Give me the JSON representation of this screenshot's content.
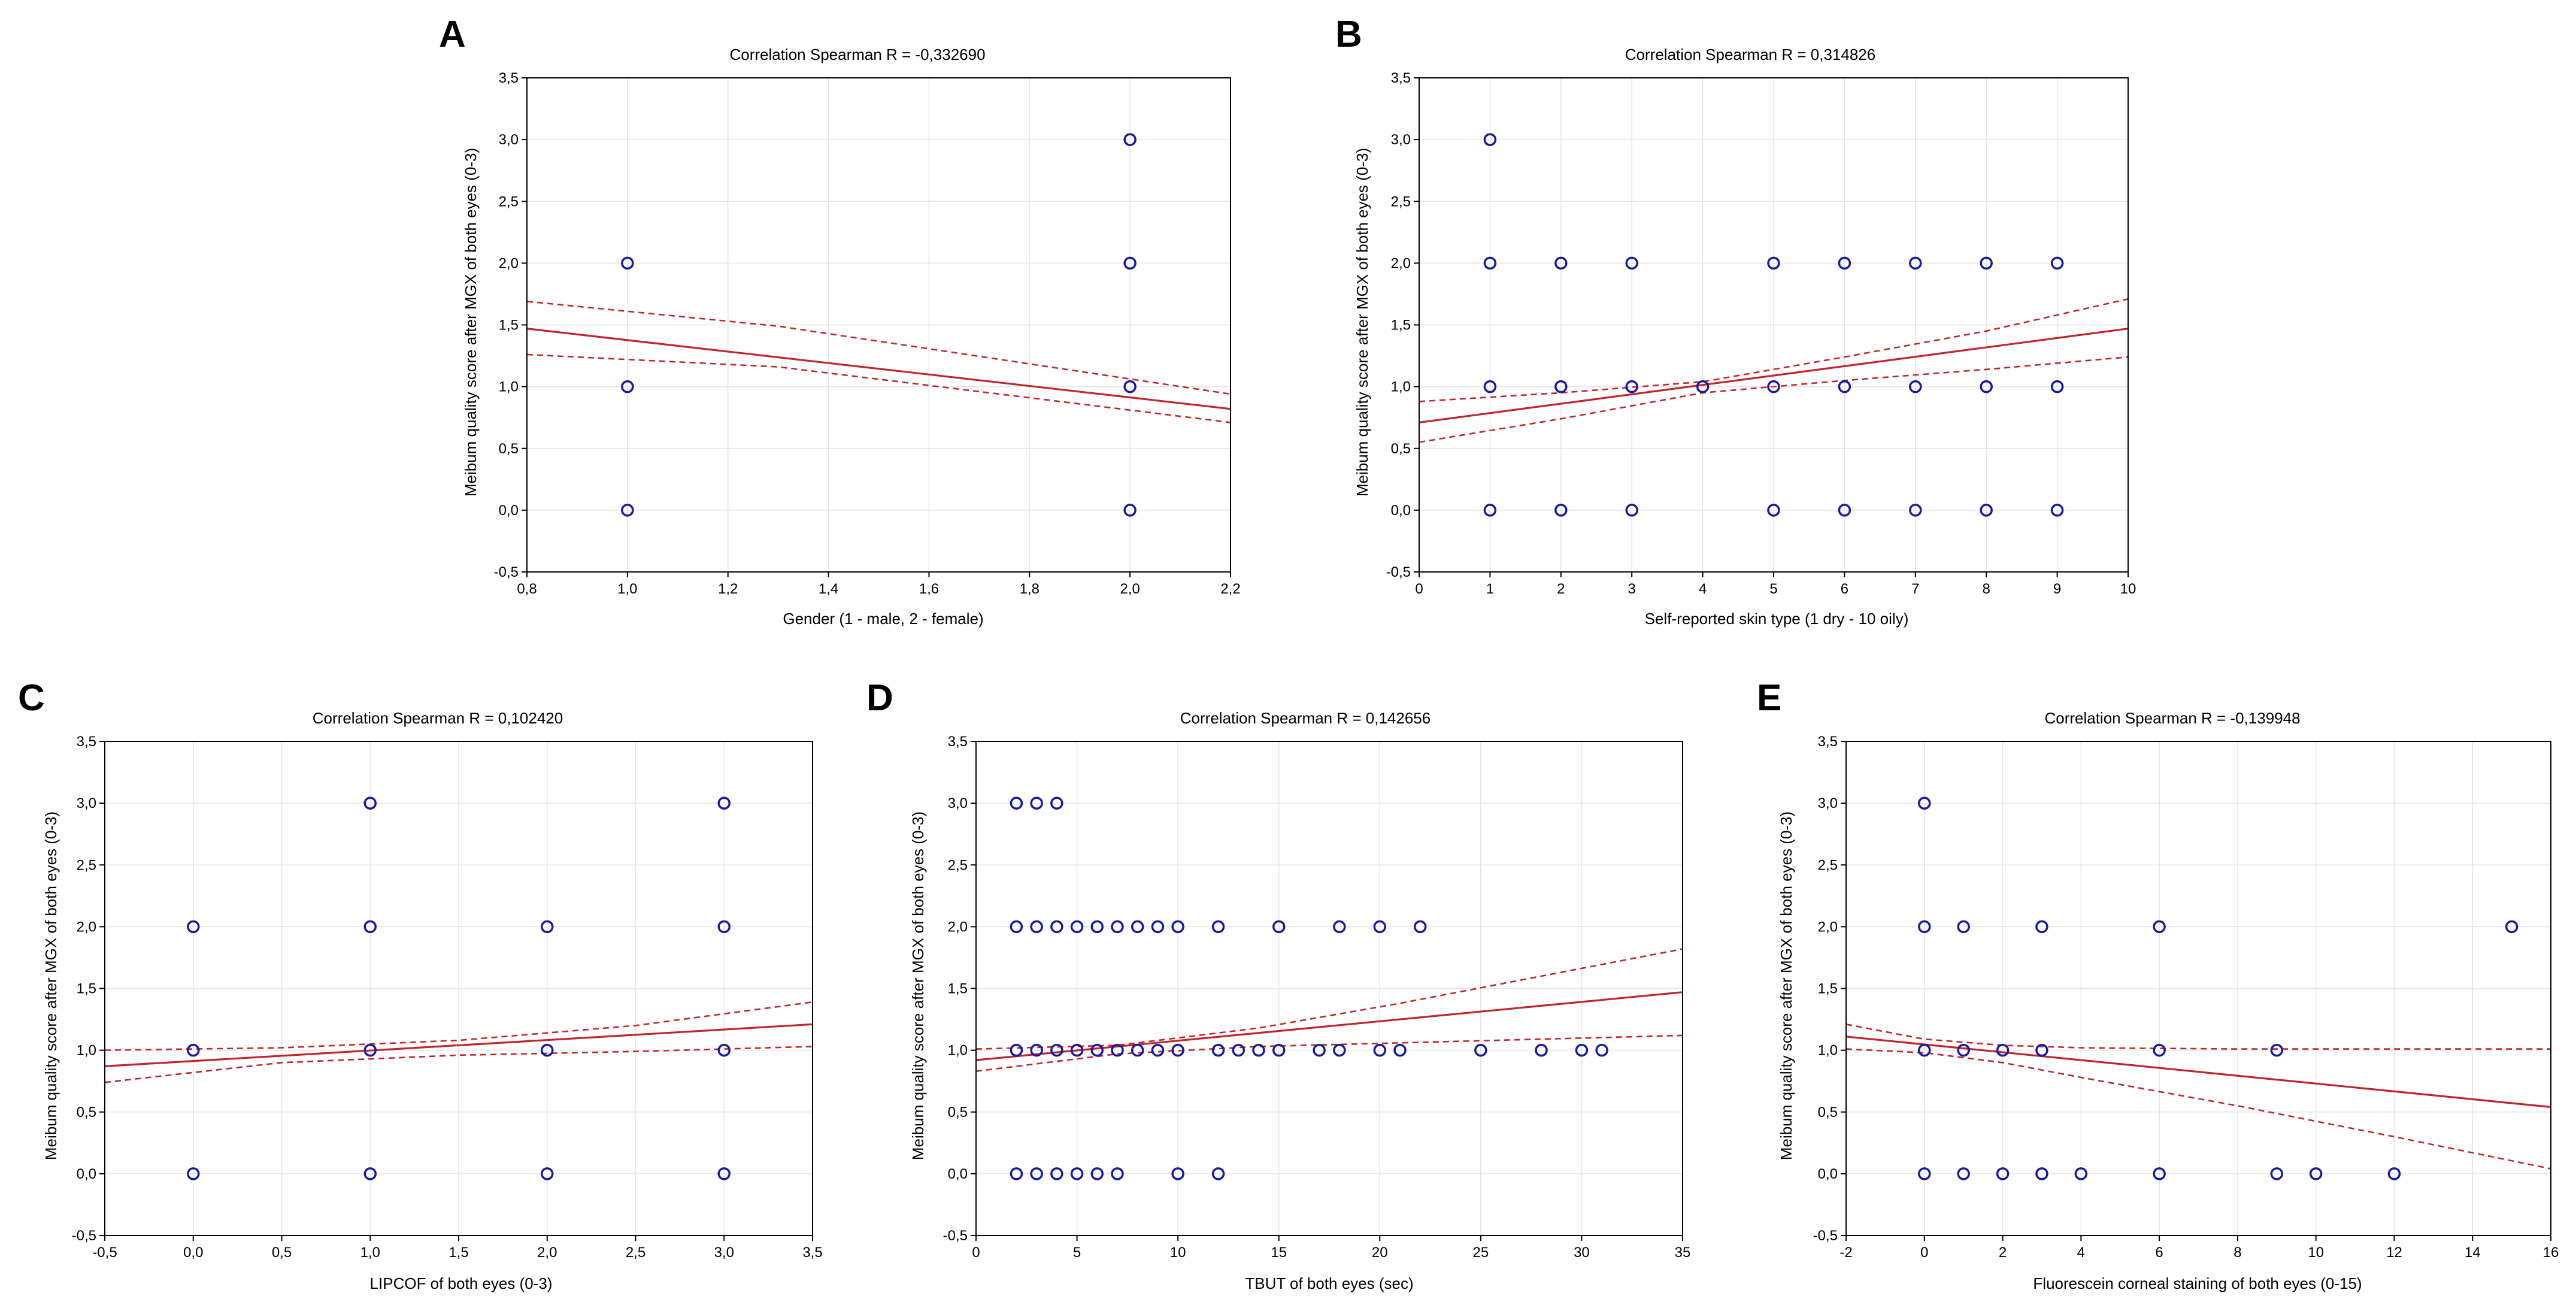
{
  "chart_data": [
    {
      "panel": "A",
      "type": "scatter",
      "title": "Correlation Spearman R = -0,332690",
      "xlabel": "Gender (1 - male, 2 - female)",
      "ylabel": "Meibum quality score after MGX of both eyes (0-3)",
      "xlim": [
        0.8,
        2.2
      ],
      "ylim": [
        -0.5,
        3.5
      ],
      "xticks": [
        "0,8",
        "1,0",
        "1,2",
        "1,4",
        "1,6",
        "1,8",
        "2,0",
        "2,2"
      ],
      "yticks": [
        "-0,5",
        "0,0",
        "0,5",
        "1,0",
        "1,5",
        "2,0",
        "2,5",
        "3,0",
        "3,5"
      ],
      "points": [
        [
          1,
          0
        ],
        [
          1,
          1
        ],
        [
          1,
          2
        ],
        [
          2,
          0
        ],
        [
          2,
          1
        ],
        [
          2,
          2
        ],
        [
          2,
          3
        ]
      ],
      "fit": [
        [
          0.8,
          1.47
        ],
        [
          2.2,
          0.82
        ]
      ],
      "ci_upper": [
        [
          0.8,
          1.69
        ],
        [
          1.3,
          1.49
        ],
        [
          2.2,
          0.94
        ]
      ],
      "ci_lower": [
        [
          0.8,
          1.26
        ],
        [
          1.3,
          1.16
        ],
        [
          2.2,
          0.71
        ]
      ]
    },
    {
      "panel": "B",
      "type": "scatter",
      "title": "Correlation Spearman R = 0,314826",
      "xlabel": "Self-reported skin type (1 dry - 10 oily)",
      "ylabel": "Meibum quality score after MGX of both eyes (0-3)",
      "xlim": [
        0,
        10
      ],
      "ylim": [
        -0.5,
        3.5
      ],
      "xticks": [
        "0",
        "1",
        "2",
        "3",
        "4",
        "5",
        "6",
        "7",
        "8",
        "9",
        "10"
      ],
      "yticks": [
        "-0,5",
        "0,0",
        "0,5",
        "1,0",
        "1,5",
        "2,0",
        "2,5",
        "3,0",
        "3,5"
      ],
      "points": [
        [
          1,
          0
        ],
        [
          1,
          1
        ],
        [
          1,
          2
        ],
        [
          1,
          3
        ],
        [
          2,
          0
        ],
        [
          2,
          1
        ],
        [
          2,
          2
        ],
        [
          3,
          0
        ],
        [
          3,
          1
        ],
        [
          3,
          2
        ],
        [
          4,
          1
        ],
        [
          5,
          0
        ],
        [
          5,
          1
        ],
        [
          5,
          2
        ],
        [
          6,
          0
        ],
        [
          6,
          1
        ],
        [
          6,
          2
        ],
        [
          7,
          0
        ],
        [
          7,
          1
        ],
        [
          7,
          2
        ],
        [
          8,
          0
        ],
        [
          8,
          1
        ],
        [
          8,
          2
        ],
        [
          9,
          0
        ],
        [
          9,
          1
        ],
        [
          9,
          2
        ]
      ],
      "fit": [
        [
          0,
          0.71
        ],
        [
          10,
          1.47
        ]
      ],
      "ci_upper": [
        [
          0,
          0.88
        ],
        [
          2,
          0.95
        ],
        [
          4,
          1.04
        ],
        [
          6,
          1.24
        ],
        [
          8,
          1.45
        ],
        [
          10,
          1.71
        ]
      ],
      "ci_lower": [
        [
          0,
          0.55
        ],
        [
          2,
          0.74
        ],
        [
          4,
          0.95
        ],
        [
          6,
          1.05
        ],
        [
          8,
          1.14
        ],
        [
          10,
          1.24
        ]
      ]
    },
    {
      "panel": "C",
      "type": "scatter",
      "title": "Correlation Spearman R = 0,102420",
      "xlabel": "LIPCOF of both eyes (0-3)",
      "ylabel": "Meibum quality score after MGX of both eyes (0-3)",
      "xlim": [
        -0.5,
        3.5
      ],
      "ylim": [
        -0.5,
        3.5
      ],
      "xticks": [
        "-0,5",
        "0,0",
        "0,5",
        "1,0",
        "1,5",
        "2,0",
        "2,5",
        "3,0",
        "3,5"
      ],
      "yticks": [
        "-0,5",
        "0,0",
        "0,5",
        "1,0",
        "1,5",
        "2,0",
        "2,5",
        "3,0",
        "3,5"
      ],
      "points": [
        [
          0,
          0
        ],
        [
          0,
          1
        ],
        [
          0,
          2
        ],
        [
          1,
          0
        ],
        [
          1,
          1
        ],
        [
          1,
          2
        ],
        [
          1,
          3
        ],
        [
          2,
          0
        ],
        [
          2,
          1
        ],
        [
          2,
          2
        ],
        [
          3,
          0
        ],
        [
          3,
          1
        ],
        [
          3,
          2
        ],
        [
          3,
          3
        ]
      ],
      "fit": [
        [
          -0.5,
          0.87
        ],
        [
          3.5,
          1.21
        ]
      ],
      "ci_upper": [
        [
          -0.5,
          1.0
        ],
        [
          0.5,
          1.02
        ],
        [
          1.5,
          1.08
        ],
        [
          2.5,
          1.2
        ],
        [
          3.5,
          1.39
        ]
      ],
      "ci_lower": [
        [
          -0.5,
          0.74
        ],
        [
          0.5,
          0.9
        ],
        [
          1.5,
          0.96
        ],
        [
          2.5,
          0.99
        ],
        [
          3.5,
          1.03
        ]
      ]
    },
    {
      "panel": "D",
      "type": "scatter",
      "title": "Correlation Spearman R = 0,142656",
      "xlabel": "TBUT of both eyes (sec)",
      "ylabel": "Meibum quality score after MGX of both eyes (0-3)",
      "xlim": [
        0,
        35
      ],
      "ylim": [
        -0.5,
        3.5
      ],
      "xticks": [
        "0",
        "5",
        "10",
        "15",
        "20",
        "25",
        "30",
        "35"
      ],
      "yticks": [
        "-0,5",
        "0,0",
        "0,5",
        "1,0",
        "1,5",
        "2,0",
        "2,5",
        "3,0",
        "3,5"
      ],
      "points": [
        [
          2,
          0
        ],
        [
          3,
          0
        ],
        [
          4,
          0
        ],
        [
          5,
          0
        ],
        [
          6,
          0
        ],
        [
          7,
          0
        ],
        [
          10,
          0
        ],
        [
          12,
          0
        ],
        [
          2,
          1
        ],
        [
          3,
          1
        ],
        [
          4,
          1
        ],
        [
          5,
          1
        ],
        [
          6,
          1
        ],
        [
          7,
          1
        ],
        [
          8,
          1
        ],
        [
          9,
          1
        ],
        [
          10,
          1
        ],
        [
          12,
          1
        ],
        [
          13,
          1
        ],
        [
          14,
          1
        ],
        [
          15,
          1
        ],
        [
          17,
          1
        ],
        [
          18,
          1
        ],
        [
          20,
          1
        ],
        [
          21,
          1
        ],
        [
          25,
          1
        ],
        [
          28,
          1
        ],
        [
          30,
          1
        ],
        [
          31,
          1
        ],
        [
          2,
          2
        ],
        [
          3,
          2
        ],
        [
          4,
          2
        ],
        [
          5,
          2
        ],
        [
          6,
          2
        ],
        [
          7,
          2
        ],
        [
          8,
          2
        ],
        [
          9,
          2
        ],
        [
          10,
          2
        ],
        [
          12,
          2
        ],
        [
          15,
          2
        ],
        [
          18,
          2
        ],
        [
          20,
          2
        ],
        [
          22,
          2
        ],
        [
          2,
          3
        ],
        [
          3,
          3
        ],
        [
          4,
          3
        ]
      ],
      "fit": [
        [
          0,
          0.92
        ],
        [
          35,
          1.47
        ]
      ],
      "ci_upper": [
        [
          0,
          1.01
        ],
        [
          7,
          1.04
        ],
        [
          14,
          1.18
        ],
        [
          21,
          1.38
        ],
        [
          28,
          1.6
        ],
        [
          35,
          1.82
        ]
      ],
      "ci_lower": [
        [
          0,
          0.83
        ],
        [
          7,
          0.97
        ],
        [
          14,
          1.03
        ],
        [
          21,
          1.06
        ],
        [
          28,
          1.09
        ],
        [
          35,
          1.12
        ]
      ]
    },
    {
      "panel": "E",
      "type": "scatter",
      "title": "Correlation Spearman R = -0,139948",
      "xlabel": "Fluorescein corneal staining of both eyes (0-15)",
      "ylabel": "Meibum quality score after MGX of both eyes (0-3)",
      "xlim": [
        -2,
        16
      ],
      "ylim": [
        -0.5,
        3.5
      ],
      "xticks": [
        "-2",
        "0",
        "2",
        "4",
        "6",
        "8",
        "10",
        "12",
        "14",
        "16"
      ],
      "yticks": [
        "-0,5",
        "0,0",
        "0,5",
        "1,0",
        "1,5",
        "2,0",
        "2,5",
        "3,0",
        "3,5"
      ],
      "points": [
        [
          0,
          0
        ],
        [
          0,
          1
        ],
        [
          0,
          2
        ],
        [
          0,
          3
        ],
        [
          1,
          0
        ],
        [
          1,
          1
        ],
        [
          1,
          2
        ],
        [
          2,
          0
        ],
        [
          2,
          1
        ],
        [
          3,
          0
        ],
        [
          3,
          1
        ],
        [
          3,
          2
        ],
        [
          4,
          0
        ],
        [
          6,
          0
        ],
        [
          6,
          1
        ],
        [
          6,
          2
        ],
        [
          9,
          0
        ],
        [
          9,
          1
        ],
        [
          10,
          0
        ],
        [
          12,
          0
        ],
        [
          15,
          2
        ]
      ],
      "fit": [
        [
          -2,
          1.11
        ],
        [
          16,
          0.54
        ]
      ],
      "ci_upper": [
        [
          -2,
          1.21
        ],
        [
          0,
          1.09
        ],
        [
          2,
          1.04
        ],
        [
          4,
          1.02
        ],
        [
          8,
          1.01
        ],
        [
          12,
          1.01
        ],
        [
          16,
          1.01
        ]
      ],
      "ci_lower": [
        [
          -2,
          1.01
        ],
        [
          0,
          0.98
        ],
        [
          2,
          0.9
        ],
        [
          4,
          0.78
        ],
        [
          8,
          0.55
        ],
        [
          12,
          0.3
        ],
        [
          16,
          0.04
        ]
      ]
    }
  ]
}
